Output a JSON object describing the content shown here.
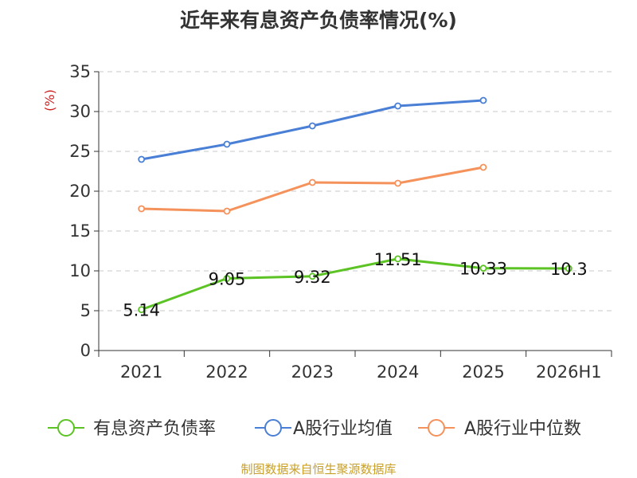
{
  "chart_data": {
    "type": "line",
    "title": "近年来有息资产负债率情况(%)",
    "ylabel": "(%)",
    "categories": [
      "2021",
      "2022",
      "2023",
      "2024",
      "2025",
      "2026H1"
    ],
    "ylim": [
      0,
      35
    ],
    "yticks": [
      0,
      5,
      10,
      15,
      20,
      25,
      30,
      35
    ],
    "grid": true,
    "legend_position": "bottom",
    "series": [
      {
        "name": "有息资产负债率",
        "color": "#5cc324",
        "values": [
          5.14,
          9.05,
          9.32,
          11.51,
          10.33,
          10.3
        ],
        "labels": [
          "5.14",
          "9.05",
          "9.32",
          "11.51",
          "10.33",
          "10.3"
        ]
      },
      {
        "name": "A股行业均值",
        "color": "#4a7fd6",
        "values": [
          24.0,
          25.9,
          28.2,
          30.7,
          31.4,
          null
        ]
      },
      {
        "name": "A股行业中位数",
        "color": "#f5915a",
        "values": [
          17.8,
          17.5,
          21.1,
          21.0,
          23.0,
          null
        ]
      }
    ]
  },
  "colors": {
    "ylabel": "#cc2222",
    "source": "#c8a02a"
  },
  "source_note": "制图数据来自恒生聚源数据库"
}
